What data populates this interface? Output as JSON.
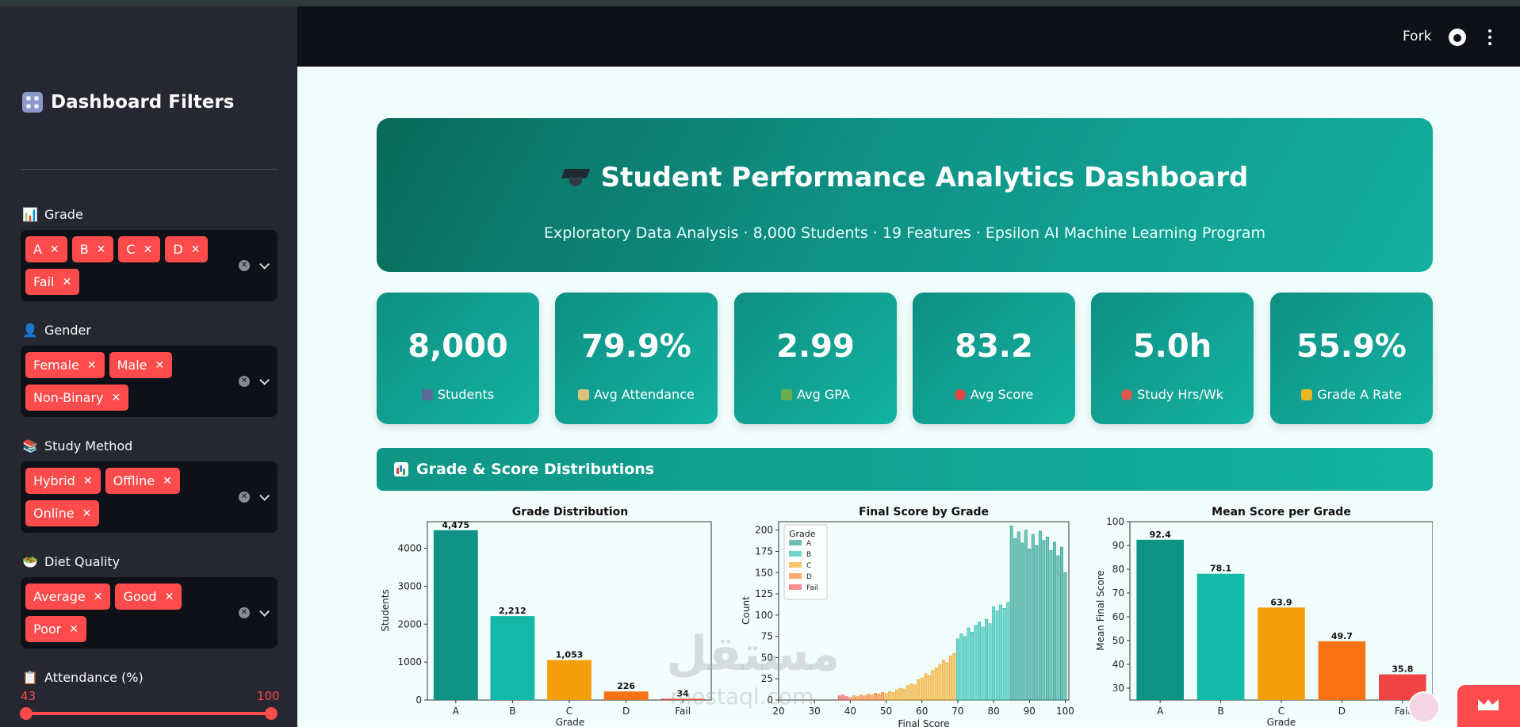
{
  "sidebar": {
    "title": "Dashboard Filters",
    "filters": [
      {
        "label": "Grade",
        "emoji": "📊",
        "tags": [
          "A",
          "B",
          "C",
          "D",
          "Fail"
        ]
      },
      {
        "label": "Gender",
        "emoji": "👤",
        "tags": [
          "Female",
          "Male",
          "Non-Binary"
        ]
      },
      {
        "label": "Study Method",
        "emoji": "📚",
        "tags": [
          "Hybrid",
          "Offline",
          "Online"
        ]
      },
      {
        "label": "Diet Quality",
        "emoji": "🥗",
        "tags": [
          "Average",
          "Good",
          "Poor"
        ]
      }
    ],
    "attendance": {
      "label": "Attendance (%)",
      "emoji": "📋",
      "min": "43",
      "max": "100"
    }
  },
  "header": {
    "fork": "Fork"
  },
  "hero": {
    "title": "Student Performance Analytics Dashboard",
    "subtitle": "Exploratory Data Analysis · 8,000 Students · 19 Features · Epsilon AI Machine Learning Program"
  },
  "kpis": [
    {
      "value": "8,000",
      "label": "Students",
      "color": "#5a6b9a"
    },
    {
      "value": "79.9%",
      "label": "Avg Attendance",
      "color": "#d9c27a"
    },
    {
      "value": "2.99",
      "label": "Avg GPA",
      "color": "#6fae4a"
    },
    {
      "value": "83.2",
      "label": "Avg Score",
      "color": "#e04848"
    },
    {
      "value": "5.0h",
      "label": "Study Hrs/Wk",
      "color": "#e0574f"
    },
    {
      "value": "55.9%",
      "label": "Grade A Rate",
      "color": "#e8b923"
    }
  ],
  "section": {
    "title": "Grade & Score Distributions"
  },
  "watermark": {
    "text": "مستقل",
    "sub": "mostaql.com"
  },
  "chart_data": [
    {
      "type": "bar",
      "title": "Grade Distribution",
      "xlabel": "Grade",
      "ylabel": "Students",
      "categories": [
        "A",
        "B",
        "C",
        "D",
        "Fail"
      ],
      "values": [
        4475,
        2212,
        1053,
        226,
        34
      ],
      "labels": [
        "4,475",
        "2,212",
        "1,053",
        "226",
        "34"
      ],
      "yticks": [
        0,
        1000,
        2000,
        3000,
        4000
      ],
      "ylim": [
        0,
        4700
      ],
      "colors": [
        "#0e9384",
        "#14b8a6",
        "#f59e0b",
        "#f97316",
        "#ef4444"
      ]
    },
    {
      "type": "bar",
      "title": "Final Score by Grade",
      "xlabel": "Final Score",
      "ylabel": "Count",
      "legend_title": "Grade",
      "legend": [
        "A",
        "B",
        "C",
        "D",
        "Fail"
      ],
      "legend_colors": [
        "#0e9384",
        "#14b8a6",
        "#f59e0b",
        "#f97316",
        "#ef4444"
      ],
      "xticks": [
        20,
        30,
        40,
        50,
        60,
        70,
        80,
        90,
        100
      ],
      "yticks": [
        0,
        25,
        50,
        75,
        100,
        125,
        150,
        175,
        200
      ],
      "xlim": [
        20,
        101
      ],
      "ylim": [
        0,
        210
      ],
      "histogram": [
        {
          "grade": "Fail",
          "x": [
            37,
            38,
            39
          ],
          "y": [
            5,
            6,
            4
          ]
        },
        {
          "grade": "D",
          "x": [
            40,
            41,
            42,
            43,
            44,
            45,
            46,
            47,
            48,
            49
          ],
          "y": [
            3,
            5,
            4,
            6,
            5,
            7,
            6,
            8,
            7,
            9
          ]
        },
        {
          "grade": "C",
          "x": [
            50,
            51,
            52,
            53,
            54,
            55,
            56,
            57,
            58,
            59,
            60,
            61,
            62,
            63,
            64,
            65,
            66,
            67,
            68,
            69
          ],
          "y": [
            8,
            10,
            9,
            12,
            14,
            13,
            17,
            19,
            18,
            24,
            26,
            31,
            29,
            35,
            38,
            42,
            47,
            44,
            52,
            55
          ]
        },
        {
          "grade": "B",
          "x": [
            70,
            71,
            72,
            73,
            74,
            75,
            76,
            77,
            78,
            79,
            80,
            81,
            82,
            83,
            84
          ],
          "y": [
            72,
            78,
            75,
            85,
            80,
            88,
            92,
            86,
            95,
            90,
            110,
            105,
            112,
            108,
            115
          ]
        },
        {
          "grade": "A",
          "x": [
            85,
            86,
            87,
            88,
            89,
            90,
            91,
            92,
            93,
            94,
            95,
            96,
            97,
            98,
            99,
            100
          ],
          "y": [
            205,
            190,
            198,
            185,
            200,
            178,
            195,
            182,
            199,
            188,
            192,
            176,
            186,
            170,
            180,
            150
          ]
        }
      ]
    },
    {
      "type": "bar",
      "title": "Mean Score per Grade",
      "xlabel": "Grade",
      "ylabel": "Mean Final Score",
      "categories": [
        "A",
        "B",
        "C",
        "D",
        "Fail"
      ],
      "values": [
        92.4,
        78.1,
        63.9,
        49.7,
        35.8
      ],
      "labels": [
        "92.4",
        "78.1",
        "63.9",
        "49.7",
        "35.8"
      ],
      "yticks": [
        30,
        40,
        50,
        60,
        70,
        80,
        90,
        100
      ],
      "ylim": [
        25,
        100
      ],
      "colors": [
        "#0e9384",
        "#14b8a6",
        "#f59e0b",
        "#f97316",
        "#ef4444"
      ]
    }
  ]
}
